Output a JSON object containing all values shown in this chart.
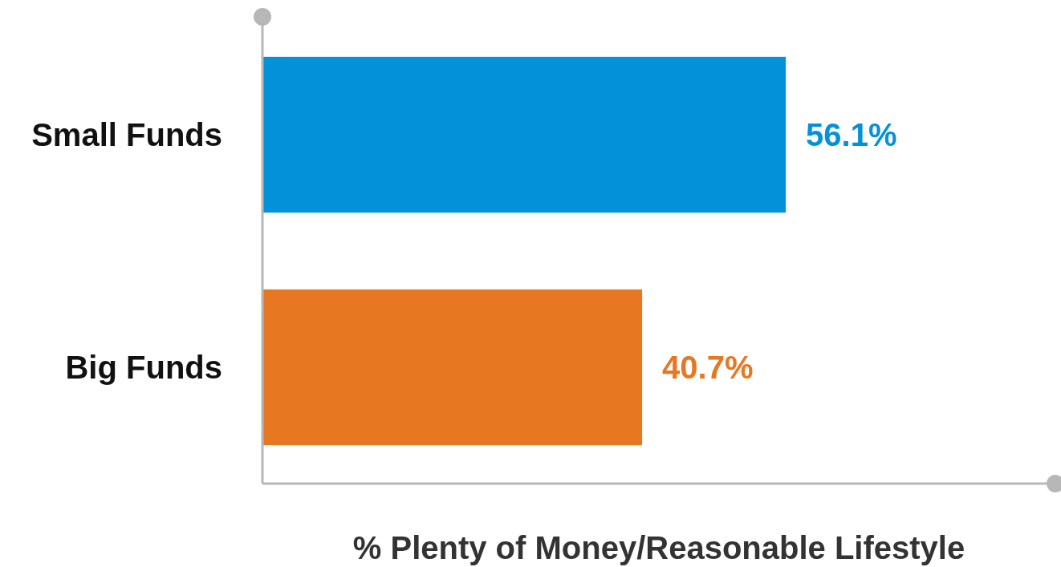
{
  "chart_data": {
    "type": "bar",
    "orientation": "horizontal",
    "categories": [
      "Small Funds",
      "Big Funds"
    ],
    "values": [
      56.1,
      40.7
    ],
    "colors": [
      "#0391d9",
      "#e87722"
    ],
    "value_labels": [
      "56.1%",
      "40.7%"
    ],
    "xlim": [
      0,
      85
    ],
    "xlabel": "% Plenty of Money/Reasonable Lifestyle"
  }
}
